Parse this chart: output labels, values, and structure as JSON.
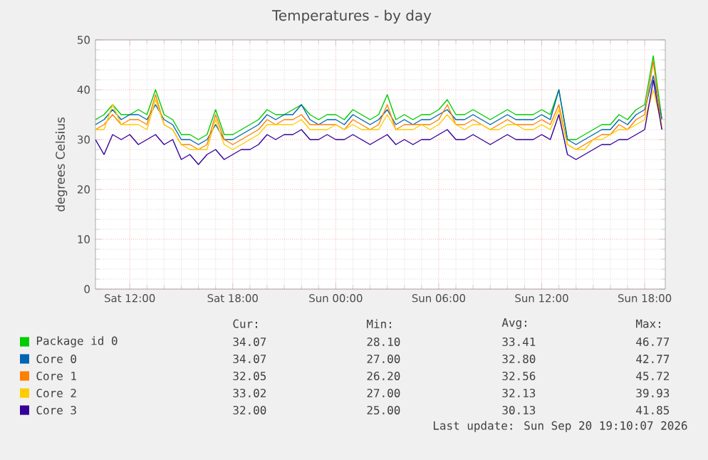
{
  "chart_data": {
    "type": "line",
    "title": "Temperatures - by day",
    "ylabel": "degrees Celsius",
    "categories": [
      null,
      null,
      null,
      null,
      "Sat 12:00",
      null,
      null,
      null,
      null,
      null,
      null,
      null,
      null,
      null,
      null,
      null,
      "Sat 18:00",
      null,
      null,
      null,
      null,
      null,
      null,
      null,
      null,
      null,
      null,
      null,
      "Sun 00:00",
      null,
      null,
      null,
      null,
      null,
      null,
      null,
      null,
      null,
      null,
      null,
      "Sun 06:00",
      null,
      null,
      null,
      null,
      null,
      null,
      null,
      null,
      null,
      null,
      null,
      "Sun 12:00",
      null,
      null,
      null,
      null,
      null,
      null,
      null,
      null,
      null,
      null,
      null,
      "Sun 18:00",
      null,
      null
    ],
    "ylim": [
      0,
      50
    ],
    "yticks": [
      0,
      10,
      20,
      30,
      40,
      50
    ],
    "grid": true,
    "legend": "bottom",
    "marker": "none",
    "series": [
      {
        "name": "Package id 0",
        "color": "#00cc00",
        "values": [
          34,
          35,
          37,
          35,
          35,
          36,
          35,
          40,
          35,
          34,
          31,
          31,
          30,
          31,
          36,
          31,
          31,
          32,
          33,
          34,
          36,
          35,
          35,
          36,
          37,
          35,
          34,
          35,
          35,
          34,
          36,
          35,
          34,
          35,
          39,
          34,
          35,
          34,
          35,
          35,
          36,
          38,
          35,
          35,
          36,
          35,
          34,
          35,
          36,
          35,
          35,
          35,
          36,
          35,
          40,
          30,
          30,
          31,
          32,
          33,
          33,
          35,
          34,
          36,
          37,
          46.8,
          34.1
        ]
      },
      {
        "name": "Core 0",
        "color": "#0066b3",
        "values": [
          33,
          34,
          36,
          34,
          35,
          35,
          34,
          37,
          34,
          33,
          30,
          30,
          29,
          30,
          33,
          30,
          30,
          31,
          32,
          33,
          35,
          34,
          35,
          35,
          37,
          34,
          33,
          34,
          34,
          33,
          35,
          34,
          33,
          34,
          36,
          33,
          34,
          33,
          34,
          34,
          35,
          36,
          34,
          34,
          35,
          34,
          33,
          34,
          35,
          34,
          34,
          34,
          35,
          34,
          40,
          30,
          29,
          30,
          31,
          32,
          32,
          34,
          33,
          35,
          36,
          42.8,
          34.1
        ]
      },
      {
        "name": "Core 1",
        "color": "#ff8000",
        "values": [
          32,
          33,
          35,
          33,
          34,
          34,
          33,
          39,
          33,
          32,
          29,
          29,
          28,
          29,
          35,
          30,
          29,
          30,
          31,
          32,
          34,
          33,
          34,
          34,
          35,
          33,
          33,
          33,
          33,
          32,
          34,
          33,
          32,
          33,
          37,
          32,
          33,
          33,
          33,
          33,
          34,
          37,
          33,
          33,
          34,
          33,
          32,
          33,
          34,
          33,
          33,
          33,
          34,
          33,
          37,
          29,
          28,
          29,
          30,
          31,
          31,
          33,
          32,
          34,
          35,
          45.7,
          32.1
        ]
      },
      {
        "name": "Core 2",
        "color": "#ffcc00",
        "values": [
          32,
          32,
          37,
          33,
          33,
          33,
          32,
          38,
          33,
          32,
          29,
          28,
          28,
          28,
          34,
          29,
          28,
          29,
          30,
          31,
          33,
          33,
          33,
          33,
          34,
          32,
          32,
          32,
          33,
          32,
          33,
          32,
          32,
          32,
          35,
          32,
          32,
          32,
          33,
          32,
          33,
          35,
          33,
          32,
          33,
          33,
          32,
          32,
          33,
          33,
          32,
          32,
          33,
          32,
          36,
          29,
          28,
          28,
          30,
          30,
          31,
          32,
          32,
          33,
          34,
          39.9,
          33
        ]
      },
      {
        "name": "Core 3",
        "color": "#330099",
        "values": [
          30,
          27,
          31,
          30,
          31,
          29,
          30,
          31,
          29,
          30,
          26,
          27,
          25,
          27,
          28,
          26,
          27,
          28,
          28,
          29,
          31,
          30,
          31,
          31,
          32,
          30,
          30,
          31,
          30,
          30,
          31,
          30,
          29,
          30,
          31,
          29,
          30,
          29,
          30,
          30,
          31,
          32,
          30,
          30,
          31,
          30,
          29,
          30,
          31,
          30,
          30,
          30,
          31,
          30,
          35,
          27,
          26,
          27,
          28,
          29,
          29,
          30,
          30,
          31,
          32,
          41.9,
          32
        ]
      }
    ],
    "annotations": [
      "Cur:",
      "Min:",
      "Avg:",
      "Max:",
      "34.07",
      "28.10",
      "33.41",
      "46.77",
      "34.07",
      "27.00",
      "32.80",
      "42.77",
      "32.05",
      "26.20",
      "32.56",
      "45.72",
      "33.02",
      "27.00",
      "32.13",
      "39.93",
      "32.00",
      "25.00",
      "30.13",
      "41.85",
      "Last update: Sun Sep 20 19:10:07 2026"
    ]
  }
}
